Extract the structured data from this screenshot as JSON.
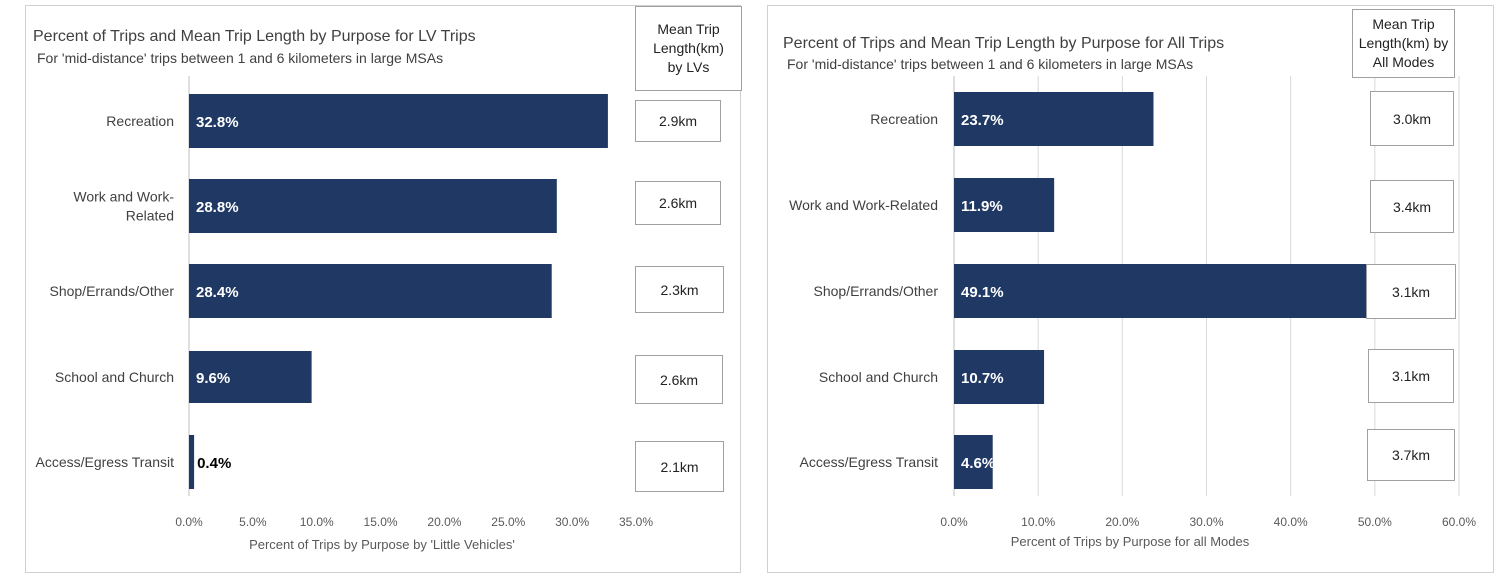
{
  "chart_data": [
    {
      "type": "bar",
      "orientation": "horizontal",
      "title": "Percent of Trips and Mean Trip Length by Purpose for LV Trips",
      "subtitle": "For 'mid-distance' trips between 1 and 6 kilometers in large MSAs",
      "categories": [
        [
          "Recreation"
        ],
        [
          "Work and Work-",
          "Related"
        ],
        [
          "Shop/Errands/Other"
        ],
        [
          "School and Church"
        ],
        [
          "Access/Egress Transit"
        ]
      ],
      "values": [
        32.8,
        28.8,
        28.4,
        9.6,
        0.4
      ],
      "value_labels": [
        "32.8%",
        "28.8%",
        "28.4%",
        "9.6%",
        "0.4%"
      ],
      "xlim": [
        0,
        35
      ],
      "ticks": [
        0,
        5,
        10,
        15,
        20,
        25,
        30,
        35
      ],
      "tick_labels": [
        "0.0%",
        "5.0%",
        "10.0%",
        "15.0%",
        "20.0%",
        "25.0%",
        "30.0%",
        "35.0%"
      ],
      "xlabel": "Percent of Trips by Purpose by 'Little Vehicles'",
      "ylabel": "",
      "grid": false,
      "bar_color": "#203864",
      "mean_header": [
        "Mean Trip",
        "Length(km)",
        "by LVs"
      ],
      "mean_values": [
        "2.9km",
        "2.6km",
        "2.3km",
        "2.6km",
        "2.1km"
      ]
    },
    {
      "type": "bar",
      "orientation": "horizontal",
      "title": "Percent of Trips and Mean Trip Length by Purpose for All Trips",
      "subtitle": "For 'mid-distance' trips between 1 and 6 kilometers in large MSAs",
      "categories": [
        [
          "Recreation"
        ],
        [
          "Work and Work-Related"
        ],
        [
          "Shop/Errands/Other"
        ],
        [
          "School and Church"
        ],
        [
          "Access/Egress Transit"
        ]
      ],
      "values": [
        23.7,
        11.9,
        49.1,
        10.7,
        4.6
      ],
      "value_labels": [
        "23.7%",
        "11.9%",
        "49.1%",
        "10.7%",
        "4.6%"
      ],
      "xlim": [
        0,
        60
      ],
      "ticks": [
        0,
        10,
        20,
        30,
        40,
        50,
        60
      ],
      "tick_labels": [
        "0.0%",
        "10.0%",
        "20.0%",
        "30.0%",
        "40.0%",
        "50.0%",
        "60.0%"
      ],
      "xlabel": "Percent of Trips by Purpose for all Modes",
      "ylabel": "",
      "grid": true,
      "bar_color": "#203864",
      "mean_header": [
        "Mean Trip",
        "Length(km) by",
        "All Modes"
      ],
      "mean_values": [
        "3.0km",
        "3.4km",
        "3.1km",
        "3.1km",
        "3.7km"
      ]
    }
  ]
}
